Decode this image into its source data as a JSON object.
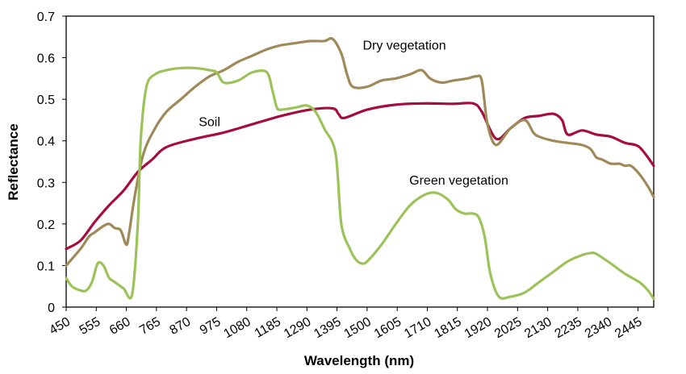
{
  "chart_data": {
    "type": "line",
    "title": "",
    "xlabel": "Wavelength (nm)",
    "ylabel": "Reflectance",
    "xlim": [
      450,
      2500
    ],
    "ylim": [
      0,
      0.7
    ],
    "yticks": [
      0,
      0.1,
      0.2,
      0.3,
      0.4,
      0.5,
      0.6,
      0.7
    ],
    "ytick_labels": [
      "0",
      "0.1",
      "0.2",
      "0.3",
      "0.4",
      "0.5",
      "0.6",
      "0.7"
    ],
    "xticks": [
      450,
      555,
      660,
      765,
      870,
      975,
      1080,
      1185,
      1290,
      1395,
      1500,
      1605,
      1710,
      1815,
      1920,
      2025,
      2130,
      2235,
      2340,
      2445
    ],
    "xtick_labels": [
      "450",
      "555",
      "660",
      "765",
      "870",
      "975",
      "1080",
      "1185",
      "1290",
      "1395",
      "1500",
      "1605",
      "1710",
      "1815",
      "1920",
      "2025",
      "2130",
      "2235",
      "2340",
      "2445"
    ],
    "grid": false,
    "series": [
      {
        "name": "Soil",
        "color": "#a50d3f",
        "x": [
          450,
          500,
          550,
          600,
          650,
          700,
          750,
          800,
          900,
          1000,
          1100,
          1200,
          1300,
          1380,
          1400,
          1420,
          1500,
          1600,
          1700,
          1800,
          1870,
          1900,
          1950,
          2000,
          2050,
          2100,
          2150,
          2180,
          2200,
          2250,
          2300,
          2350,
          2400,
          2450,
          2500
        ],
        "y": [
          0.14,
          0.16,
          0.205,
          0.245,
          0.28,
          0.325,
          0.355,
          0.385,
          0.405,
          0.42,
          0.44,
          0.46,
          0.475,
          0.478,
          0.465,
          0.455,
          0.475,
          0.487,
          0.49,
          0.489,
          0.49,
          0.47,
          0.405,
          0.43,
          0.455,
          0.46,
          0.465,
          0.45,
          0.415,
          0.425,
          0.415,
          0.41,
          0.395,
          0.385,
          0.34
        ]
      },
      {
        "name": "Dry vegetation",
        "color": "#a08959",
        "x": [
          450,
          500,
          530,
          550,
          580,
          600,
          620,
          640,
          660,
          670,
          690,
          720,
          760,
          800,
          850,
          900,
          950,
          1000,
          1050,
          1100,
          1150,
          1200,
          1250,
          1300,
          1350,
          1380,
          1410,
          1430,
          1450,
          1500,
          1550,
          1600,
          1650,
          1690,
          1720,
          1760,
          1800,
          1850,
          1880,
          1900,
          1920,
          1950,
          2000,
          2050,
          2080,
          2100,
          2150,
          2200,
          2250,
          2280,
          2300,
          2320,
          2350,
          2380,
          2400,
          2420,
          2450,
          2480,
          2500
        ],
        "y": [
          0.1,
          0.14,
          0.17,
          0.18,
          0.195,
          0.2,
          0.19,
          0.185,
          0.15,
          0.18,
          0.27,
          0.37,
          0.43,
          0.47,
          0.5,
          0.53,
          0.555,
          0.57,
          0.59,
          0.605,
          0.62,
          0.63,
          0.635,
          0.64,
          0.64,
          0.645,
          0.61,
          0.56,
          0.53,
          0.53,
          0.545,
          0.55,
          0.56,
          0.57,
          0.55,
          0.54,
          0.545,
          0.55,
          0.555,
          0.545,
          0.44,
          0.39,
          0.43,
          0.45,
          0.42,
          0.41,
          0.4,
          0.395,
          0.39,
          0.38,
          0.36,
          0.355,
          0.345,
          0.345,
          0.34,
          0.34,
          0.32,
          0.29,
          0.265
        ]
      },
      {
        "name": "Green vegetation",
        "color": "#9cc25a",
        "x": [
          450,
          470,
          500,
          520,
          540,
          560,
          580,
          600,
          620,
          650,
          680,
          700,
          710,
          730,
          760,
          800,
          850,
          900,
          950,
          975,
          1000,
          1050,
          1100,
          1150,
          1170,
          1185,
          1200,
          1250,
          1290,
          1320,
          1350,
          1390,
          1410,
          1440,
          1460,
          1480,
          1500,
          1550,
          1600,
          1650,
          1700,
          1740,
          1780,
          1810,
          1840,
          1870,
          1890,
          1910,
          1930,
          1960,
          2000,
          2050,
          2100,
          2150,
          2200,
          2250,
          2280,
          2300,
          2350,
          2400,
          2450,
          2480,
          2500
        ],
        "y": [
          0.07,
          0.05,
          0.04,
          0.04,
          0.06,
          0.105,
          0.1,
          0.07,
          0.06,
          0.045,
          0.03,
          0.2,
          0.4,
          0.53,
          0.56,
          0.57,
          0.575,
          0.575,
          0.57,
          0.565,
          0.54,
          0.545,
          0.565,
          0.565,
          0.52,
          0.48,
          0.475,
          0.48,
          0.485,
          0.47,
          0.43,
          0.37,
          0.2,
          0.14,
          0.115,
          0.105,
          0.11,
          0.15,
          0.2,
          0.245,
          0.27,
          0.275,
          0.26,
          0.235,
          0.225,
          0.225,
          0.215,
          0.17,
          0.08,
          0.025,
          0.025,
          0.035,
          0.06,
          0.085,
          0.11,
          0.125,
          0.13,
          0.128,
          0.105,
          0.08,
          0.06,
          0.04,
          0.02
        ]
      }
    ],
    "annotations": [
      {
        "series": "Dry vegetation",
        "text": "Dry vegetation",
        "x": 1630,
        "y": 0.62
      },
      {
        "series": "Soil",
        "text": "Soil",
        "x": 950,
        "y": 0.435
      },
      {
        "series": "Green vegetation",
        "text": "Green vegetation",
        "x": 1820,
        "y": 0.295
      }
    ]
  }
}
